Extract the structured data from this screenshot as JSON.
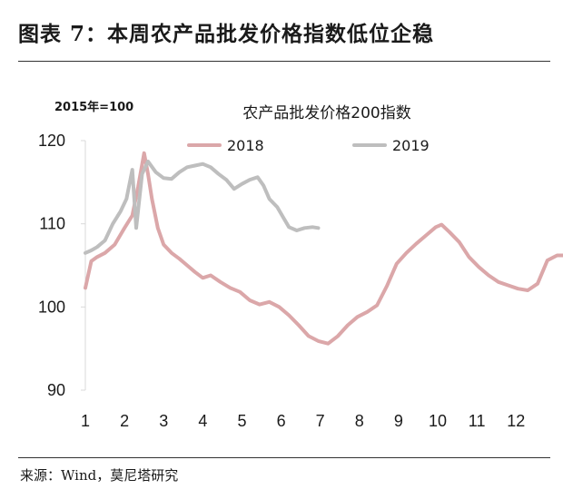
{
  "figure": {
    "title": "图表 7：本周农产品批发价格指数低位企稳",
    "source": "来源：Wind，莫尼塔研究"
  },
  "chart_data": {
    "type": "line",
    "title": "农产品批发价格200指数",
    "base_note": "2015年=100",
    "xlabel": "",
    "ylabel": "",
    "x_ticks": [
      "1",
      "2",
      "3",
      "4",
      "5",
      "6",
      "7",
      "8",
      "9",
      "10",
      "11",
      "12"
    ],
    "xlim": [
      1,
      13.2
    ],
    "y_ticks": [
      90,
      100,
      110,
      120
    ],
    "ylim": [
      90,
      120
    ],
    "grid": false,
    "legend_position": "top",
    "series": [
      {
        "name": "2018",
        "color": "#dba7a9",
        "x": [
          1.0,
          1.15,
          1.3,
          1.5,
          1.75,
          2.0,
          2.2,
          2.35,
          2.5,
          2.6,
          2.7,
          2.85,
          3.0,
          3.2,
          3.4,
          3.6,
          3.8,
          4.0,
          4.2,
          4.45,
          4.7,
          4.95,
          5.2,
          5.45,
          5.7,
          5.95,
          6.2,
          6.45,
          6.7,
          6.95,
          7.2,
          7.45,
          7.7,
          7.95,
          8.2,
          8.45,
          8.7,
          8.95,
          9.2,
          9.45,
          9.7,
          9.95,
          10.1,
          10.3,
          10.55,
          10.8,
          11.05,
          11.3,
          11.55,
          11.8,
          12.05,
          12.3,
          12.55,
          12.8,
          13.05,
          13.2
        ],
        "values": [
          102.3,
          105.5,
          106.0,
          106.5,
          107.5,
          109.5,
          111.0,
          114.5,
          118.5,
          116.0,
          113.0,
          109.5,
          107.5,
          106.5,
          105.8,
          105.0,
          104.2,
          103.5,
          103.8,
          103.0,
          102.3,
          101.8,
          100.8,
          100.3,
          100.6,
          100.0,
          99.0,
          97.8,
          96.5,
          95.9,
          95.6,
          96.5,
          97.8,
          98.8,
          99.4,
          100.2,
          102.5,
          105.2,
          106.5,
          107.6,
          108.6,
          109.6,
          109.9,
          109.0,
          107.8,
          106.0,
          104.8,
          103.8,
          103.0,
          102.6,
          102.2,
          102.0,
          102.8,
          105.6,
          106.2,
          106.2
        ]
      },
      {
        "name": "2019",
        "color": "#bebebe",
        "x": [
          1.0,
          1.15,
          1.3,
          1.5,
          1.7,
          1.9,
          2.05,
          2.2,
          2.3,
          2.45,
          2.6,
          2.8,
          3.0,
          3.2,
          3.4,
          3.6,
          3.8,
          4.0,
          4.2,
          4.4,
          4.6,
          4.8,
          5.0,
          5.2,
          5.4,
          5.55,
          5.7,
          5.9,
          6.05,
          6.2,
          6.4,
          6.6,
          6.8,
          6.95
        ],
        "values": [
          106.5,
          106.8,
          107.2,
          108.0,
          110.0,
          111.5,
          113.0,
          116.5,
          109.5,
          116.0,
          117.5,
          116.2,
          115.5,
          115.4,
          116.2,
          116.8,
          117.0,
          117.2,
          116.8,
          116.0,
          115.3,
          114.2,
          114.8,
          115.3,
          115.6,
          114.6,
          113.0,
          112.0,
          110.8,
          109.6,
          109.2,
          109.5,
          109.6,
          109.5
        ]
      }
    ]
  }
}
